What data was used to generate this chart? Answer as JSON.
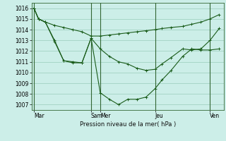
{
  "xlabel": "Pression niveau de la mer( hPa )",
  "background_color": "#cceee8",
  "grid_color": "#99ccbb",
  "line_color": "#1a5c1a",
  "vline_color": "#336633",
  "ylim": [
    1006.5,
    1016.5
  ],
  "yticks": [
    1007,
    1008,
    1009,
    1010,
    1011,
    1012,
    1013,
    1014,
    1015,
    1016
  ],
  "xlim": [
    0,
    42
  ],
  "day_labels": [
    "Mar",
    "Sam",
    "Mer",
    "Jeu",
    "Ven"
  ],
  "day_positions": [
    0.5,
    13,
    15,
    27,
    39
  ],
  "vline_positions": [
    0.5,
    13,
    15,
    27,
    39
  ],
  "line1_x": [
    0.5,
    1.5,
    3,
    5,
    7,
    9,
    11,
    13,
    15,
    17,
    19,
    21,
    23,
    25,
    27,
    28.5,
    30.5,
    33,
    35,
    37,
    39,
    41
  ],
  "line1_y": [
    1016.0,
    1015.0,
    1014.7,
    1014.4,
    1014.2,
    1014.0,
    1013.8,
    1013.4,
    1013.4,
    1013.5,
    1013.6,
    1013.7,
    1013.8,
    1013.9,
    1014.0,
    1014.1,
    1014.2,
    1014.3,
    1014.5,
    1014.7,
    1015.0,
    1015.4
  ],
  "line2_x": [
    0.5,
    1.5,
    3,
    5,
    7,
    9,
    11,
    13,
    15,
    17,
    19,
    21,
    23,
    25,
    27,
    28.5,
    30.5,
    33,
    35,
    37,
    39,
    41
  ],
  "line2_y": [
    1016.0,
    1015.0,
    1014.7,
    1013.0,
    1011.1,
    1011.0,
    1010.9,
    1013.2,
    1012.2,
    1011.5,
    1011.0,
    1010.8,
    1010.4,
    1010.2,
    1010.3,
    1010.8,
    1011.4,
    1012.2,
    1012.1,
    1012.2,
    1013.0,
    1014.1
  ],
  "line3_x": [
    0.5,
    1.5,
    3,
    5,
    7,
    9,
    11,
    13,
    15,
    17,
    19,
    21,
    23,
    25,
    27,
    28.5,
    30.5,
    33,
    35,
    37,
    39,
    41
  ],
  "line3_y": [
    1016.0,
    1015.0,
    1014.7,
    1012.9,
    1011.1,
    1010.9,
    1010.9,
    1013.2,
    1008.1,
    1007.5,
    1007.0,
    1007.5,
    1007.5,
    1007.7,
    1008.5,
    1009.3,
    1010.2,
    1011.5,
    1012.2,
    1012.1,
    1012.1,
    1012.2
  ]
}
